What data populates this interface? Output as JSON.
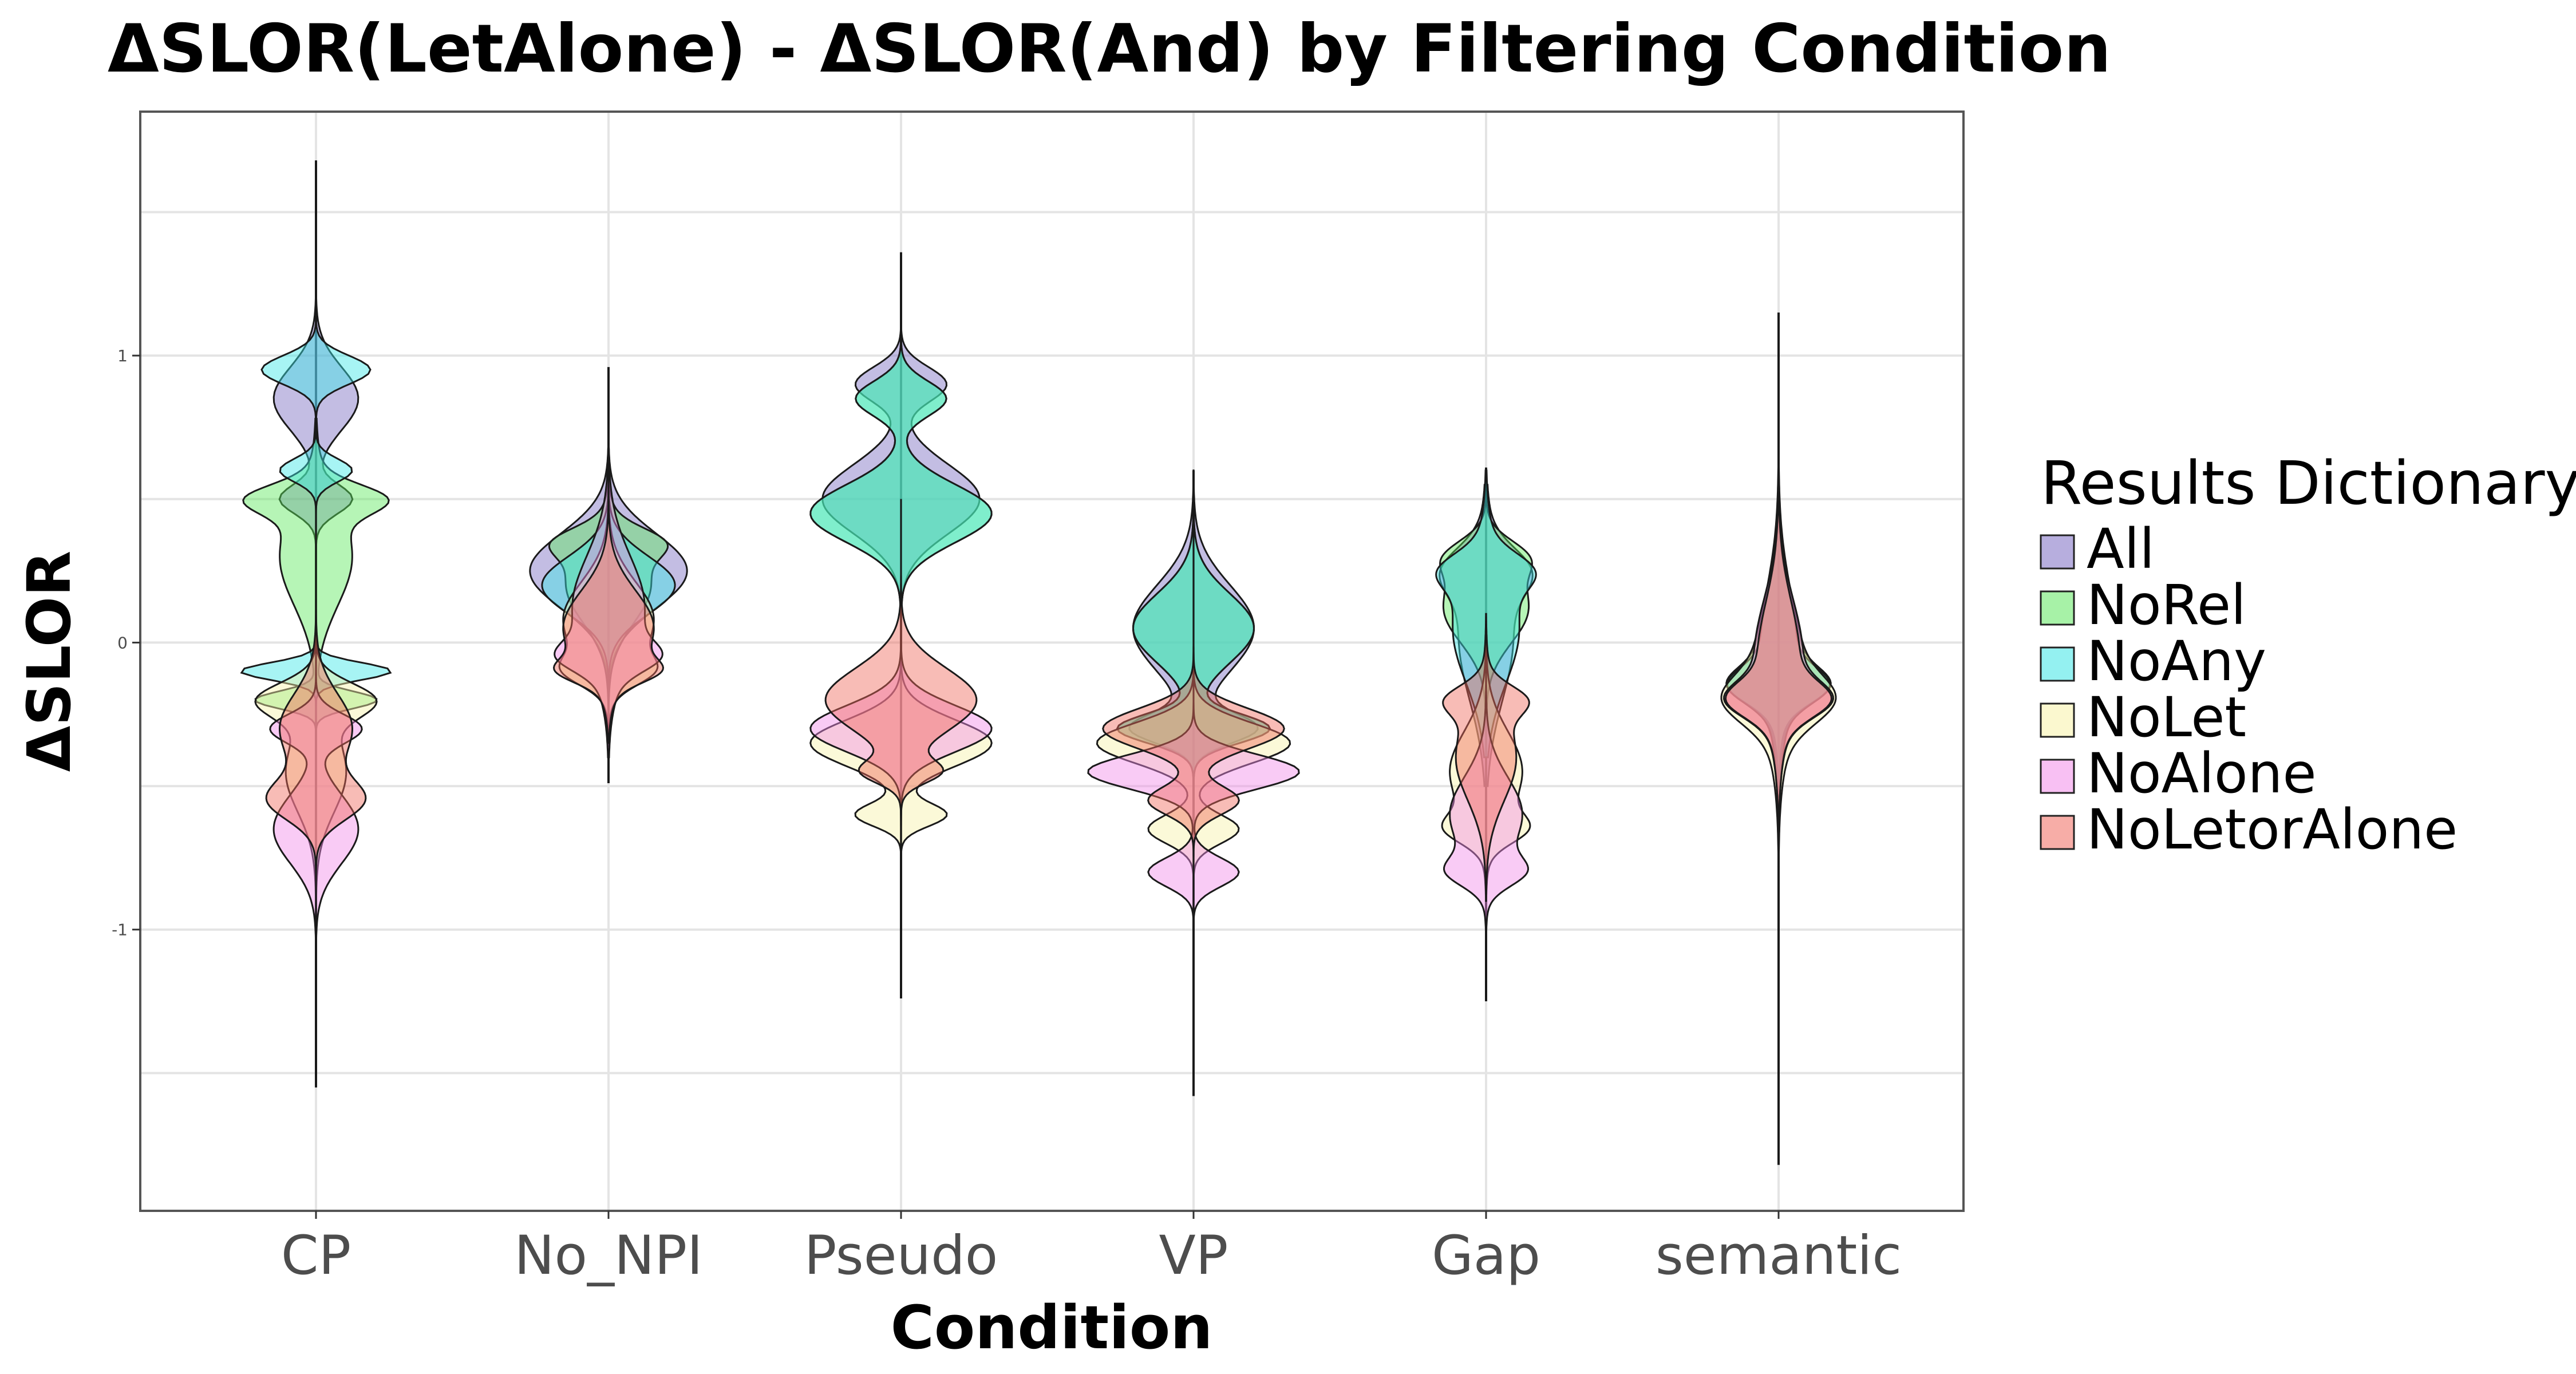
{
  "chart_data": {
    "type": "violin",
    "title": "ΔSLOR(LetAlone) - ΔSLOR(And) by Filtering Condition",
    "xlabel": "Condition",
    "ylabel": "ΔSLOR",
    "ylim": [
      -1.98,
      1.85
    ],
    "yticks": [
      {
        "value": 1,
        "label": "1"
      },
      {
        "value": 0,
        "label": "0"
      },
      {
        "value": -1,
        "label": "-1"
      }
    ],
    "grid": true,
    "legend": {
      "title": "Results Dictionary",
      "position": "right"
    },
    "categories": [
      "CP",
      "No_NPI",
      "Pseudo",
      "VP",
      "Gap",
      "semantic"
    ],
    "series": [
      {
        "name": "All",
        "color": "#7b6cc2",
        "density": [
          {
            "category": "CP",
            "min": -1.3,
            "max": 1.55,
            "modes": [
              [
                0.85,
                0.11,
                0.14
              ],
              [
                0.5,
                0.05,
                0.12
              ]
            ]
          },
          {
            "category": "No_NPI",
            "min": -0.3,
            "max": 0.9,
            "modes": [
              [
                0.25,
                0.13,
                0.26
              ]
            ]
          },
          {
            "category": "Pseudo",
            "min": -0.5,
            "max": 1.3,
            "modes": [
              [
                0.5,
                0.12,
                0.26
              ],
              [
                0.9,
                0.06,
                0.15
              ]
            ]
          },
          {
            "category": "VP",
            "min": -1.3,
            "max": 0.6,
            "modes": [
              [
                0.05,
                0.15,
                0.2
              ],
              [
                -0.3,
                0.05,
                0.2
              ]
            ]
          },
          {
            "category": "Gap",
            "min": -0.5,
            "max": 0.55,
            "modes": [
              [
                0.02,
                0.22,
                0.09
              ],
              [
                0.25,
                0.08,
                0.1
              ]
            ]
          },
          {
            "category": "semantic",
            "min": -0.8,
            "max": 0.8,
            "modes": [
              [
                -0.02,
                0.2,
                0.06
              ],
              [
                -0.15,
                0.06,
                0.12
              ]
            ]
          }
        ]
      },
      {
        "name": "NoRel",
        "color": "#5ee85e",
        "density": [
          {
            "category": "CP",
            "min": -0.9,
            "max": 0.78,
            "modes": [
              [
                0.3,
                0.17,
                0.12
              ],
              [
                0.5,
                0.05,
                0.18
              ],
              [
                -0.2,
                0.03,
                0.2
              ]
            ]
          },
          {
            "category": "No_NPI",
            "min": -0.3,
            "max": 0.9,
            "modes": [
              [
                0.2,
                0.13,
                0.14
              ],
              [
                0.35,
                0.05,
                0.12
              ]
            ]
          },
          {
            "category": "Pseudo",
            "min": -0.5,
            "max": 1.3,
            "modes": [
              [
                0.45,
                0.1,
                0.3
              ],
              [
                0.85,
                0.06,
                0.15
              ]
            ]
          },
          {
            "category": "VP",
            "min": -1.2,
            "max": 0.6,
            "modes": [
              [
                0.05,
                0.12,
                0.2
              ],
              [
                -0.3,
                0.05,
                0.25
              ]
            ]
          },
          {
            "category": "Gap",
            "min": -0.6,
            "max": 0.6,
            "modes": [
              [
                0.12,
                0.12,
                0.14
              ],
              [
                0.3,
                0.06,
                0.1
              ]
            ]
          },
          {
            "category": "semantic",
            "min": -0.8,
            "max": 0.9,
            "modes": [
              [
                -0.02,
                0.17,
                0.07
              ],
              [
                -0.15,
                0.06,
                0.12
              ]
            ]
          }
        ]
      },
      {
        "name": "NoAny",
        "color": "#3ce6e6",
        "density": [
          {
            "category": "CP",
            "min": -0.7,
            "max": 1.68,
            "modes": [
              [
                0.95,
                0.05,
                0.18
              ],
              [
                0.6,
                0.04,
                0.12
              ],
              [
                -0.1,
                0.03,
                0.25
              ]
            ]
          },
          {
            "category": "No_NPI",
            "min": -0.3,
            "max": 0.9,
            "modes": [
              [
                0.2,
                0.1,
                0.22
              ]
            ]
          },
          {
            "category": "Pseudo",
            "min": -0.5,
            "max": 1.3,
            "modes": [
              [
                0.45,
                0.1,
                0.3
              ],
              [
                0.85,
                0.06,
                0.15
              ]
            ]
          },
          {
            "category": "VP",
            "min": -1.2,
            "max": 0.6,
            "modes": [
              [
                0.05,
                0.12,
                0.2
              ],
              [
                -0.3,
                0.05,
                0.25
              ]
            ]
          },
          {
            "category": "Gap",
            "min": -0.4,
            "max": 0.6,
            "modes": [
              [
                0.05,
                0.19,
                0.11
              ],
              [
                0.25,
                0.06,
                0.1
              ]
            ]
          },
          {
            "category": "semantic",
            "min": -0.8,
            "max": 0.9,
            "modes": [
              [
                -0.02,
                0.22,
                0.06
              ],
              [
                -0.15,
                0.06,
                0.12
              ]
            ]
          }
        ]
      },
      {
        "name": "NoLet",
        "color": "#f7f2a8",
        "density": [
          {
            "category": "CP",
            "min": -1.2,
            "max": 0.3,
            "modes": [
              [
                -0.45,
                0.14,
                0.1
              ],
              [
                -0.2,
                0.06,
                0.18
              ]
            ]
          },
          {
            "category": "No_NPI",
            "min": -0.4,
            "max": 0.7,
            "modes": [
              [
                0.08,
                0.13,
                0.15
              ],
              [
                -0.1,
                0.05,
                0.1
              ]
            ]
          },
          {
            "category": "Pseudo",
            "min": -1.2,
            "max": 0.5,
            "modes": [
              [
                -0.35,
                0.08,
                0.3
              ],
              [
                -0.6,
                0.04,
                0.15
              ]
            ]
          },
          {
            "category": "VP",
            "min": -1.4,
            "max": 0.4,
            "modes": [
              [
                -0.35,
                0.07,
                0.32
              ],
              [
                -0.65,
                0.05,
                0.15
              ]
            ]
          },
          {
            "category": "Gap",
            "min": -1.0,
            "max": 0.1,
            "modes": [
              [
                -0.45,
                0.14,
                0.12
              ],
              [
                -0.65,
                0.05,
                0.1
              ]
            ]
          },
          {
            "category": "semantic",
            "min": -0.9,
            "max": 0.6,
            "modes": [
              [
                -0.08,
                0.22,
                0.08
              ],
              [
                -0.2,
                0.08,
                0.12
              ]
            ]
          }
        ]
      },
      {
        "name": "NoAlone",
        "color": "#f28ce9",
        "density": [
          {
            "category": "CP",
            "min": -1.3,
            "max": 0.1,
            "modes": [
              [
                -0.65,
                0.12,
                0.14
              ],
              [
                -0.3,
                0.05,
                0.15
              ]
            ]
          },
          {
            "category": "No_NPI",
            "min": -0.4,
            "max": 0.7,
            "modes": [
              [
                0.12,
                0.18,
                0.12
              ],
              [
                -0.05,
                0.05,
                0.1
              ]
            ]
          },
          {
            "category": "Pseudo",
            "min": -1.2,
            "max": 0.5,
            "modes": [
              [
                -0.3,
                0.08,
                0.3
              ]
            ]
          },
          {
            "category": "VP",
            "min": -1.5,
            "max": 0.4,
            "modes": [
              [
                -0.45,
                0.06,
                0.35
              ],
              [
                -0.8,
                0.05,
                0.15
              ]
            ]
          },
          {
            "category": "Gap",
            "min": -1.1,
            "max": 0.0,
            "modes": [
              [
                -0.6,
                0.13,
                0.12
              ],
              [
                -0.8,
                0.05,
                0.1
              ]
            ]
          },
          {
            "category": "semantic",
            "min": -0.9,
            "max": 0.6,
            "modes": [
              [
                -0.05,
                0.2,
                0.08
              ],
              [
                -0.2,
                0.06,
                0.12
              ]
            ]
          }
        ]
      },
      {
        "name": "NoLetorAlone",
        "color": "#f06a5e",
        "density": [
          {
            "category": "CP",
            "min": -1.25,
            "max": 0.2,
            "modes": [
              [
                -0.3,
                0.12,
                0.12
              ],
              [
                -0.55,
                0.07,
                0.15
              ]
            ]
          },
          {
            "category": "No_NPI",
            "min": -0.35,
            "max": 0.7,
            "modes": [
              [
                0.05,
                0.13,
                0.15
              ],
              [
                -0.1,
                0.04,
                0.1
              ]
            ]
          },
          {
            "category": "Pseudo",
            "min": -1.0,
            "max": 0.5,
            "modes": [
              [
                -0.2,
                0.11,
                0.25
              ],
              [
                -0.45,
                0.04,
                0.12
              ]
            ]
          },
          {
            "category": "VP",
            "min": -1.2,
            "max": 0.4,
            "modes": [
              [
                -0.3,
                0.07,
                0.3
              ],
              [
                -0.55,
                0.05,
                0.15
              ]
            ]
          },
          {
            "category": "Gap",
            "min": -0.9,
            "max": 0.1,
            "modes": [
              [
                -0.4,
                0.15,
                0.1
              ],
              [
                -0.2,
                0.05,
                0.1
              ]
            ]
          },
          {
            "category": "semantic",
            "min": -0.9,
            "max": 0.6,
            "modes": [
              [
                -0.06,
                0.2,
                0.07
              ],
              [
                -0.2,
                0.06,
                0.12
              ]
            ]
          }
        ]
      }
    ],
    "whiskers": [
      {
        "category": "CP",
        "min": -1.55,
        "max": 1.68
      },
      {
        "category": "No_NPI",
        "min": -0.49,
        "max": 0.96
      },
      {
        "category": "Pseudo",
        "min": -1.24,
        "max": 1.36
      },
      {
        "category": "VP",
        "min": -1.58,
        "max": 0.6
      },
      {
        "category": "Gap",
        "min": -1.25,
        "max": 0.61
      },
      {
        "category": "semantic",
        "min": -1.82,
        "max": 1.15
      }
    ]
  }
}
